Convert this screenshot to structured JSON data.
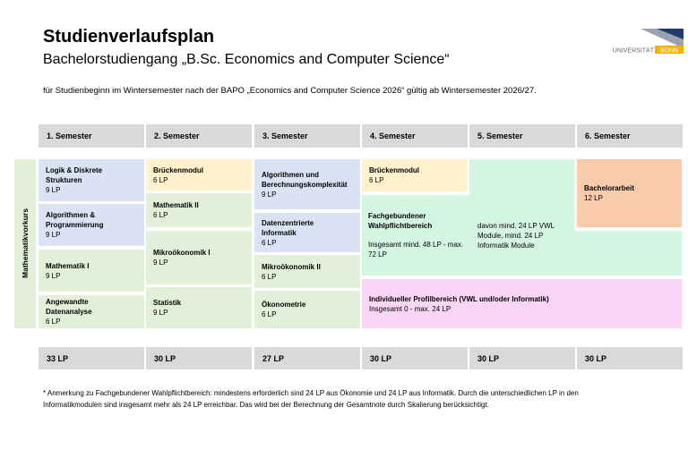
{
  "header": {
    "title": "Studienverlaufsplan",
    "subtitle": "Bachelorstudiengang „B.Sc. Economics and Computer Science“",
    "intro": "für Studienbeginn im Wintersemester nach der BAPO „Economics and Computer Science 2026“ gültig ab Wintersemester 2026/27.",
    "logo": [
      "UNIVERSITÄT",
      "BONN"
    ]
  },
  "vorkurs": "Mathematikvorkurs",
  "semesters": [
    "1. Semester",
    "2. Semester",
    "3. Semester",
    "4. Semester",
    "5. Semester",
    "6. Semester"
  ],
  "columns": [
    [
      {
        "name": "Logik & Diskrete Strukturen",
        "lp": "9 LP"
      },
      {
        "name": "Algorithmen & Programmierung",
        "lp": "9 LP"
      },
      {
        "name": "Mathematik I",
        "lp": "9 LP"
      },
      {
        "name": "Angewandte Datenanalyse",
        "lp": "6 LP"
      }
    ],
    [
      {
        "name": "Brückenmodul",
        "lp": "6 LP"
      },
      {
        "name": "Mathematik II",
        "lp": "6 LP"
      },
      {
        "name": "Mikroökonomik I",
        "lp": "9 LP"
      },
      {
        "name": "Statistik",
        "lp": "9 LP"
      }
    ],
    [
      {
        "name": "Algorithmen und Berechnungskomplexität",
        "lp": "9 LP"
      },
      {
        "name": "Datenzentrierte Informatik",
        "lp": "6 LP"
      },
      {
        "name": "Mikroökonomik II",
        "lp": "6 LP"
      },
      {
        "name": "Ökonometrie",
        "lp": "6 LP"
      }
    ],
    [
      {
        "name": "Brückenmodul",
        "lp": "6 LP"
      }
    ]
  ],
  "wahlpflicht": {
    "name": "Fachgebundener Wahlpflichtbereich",
    "text": "Insgesamt mind. 48 LP - max. 72 LP",
    "note": "davon mind. 24 LP VWL Module, mind. 24 LP Informatik Module"
  },
  "bachelorarbeit": {
    "name": "Bachelorarbeit",
    "lp": "12 LP"
  },
  "profil": {
    "name": "Individueller Profilbereich (VWL und/oder Informatik)",
    "text": "Insgesamt 0 - max. 24 LP"
  },
  "totals": [
    "33 LP",
    "30 LP",
    "27 LP",
    "30 LP",
    "30 LP",
    "30 LP"
  ],
  "footnote": [
    "* Anmerkung zu Fachgebundener Wahlpflichtbereich: mindestens erforderlich sind 24 LP aus Ökonomie und 24 LP aus Informatik. Durch die unterschiedlichen LP in den",
    "Informatikmodulen sind insgesamt mehr als 24 LP erreichbar. Das wird bei der Berechnung der Gesamtnote durch Skalierung berücksichtigt."
  ]
}
